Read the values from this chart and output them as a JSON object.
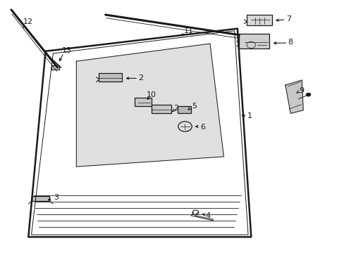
{
  "bg_color": "#ffffff",
  "line_color": "#1a1a1a",
  "label_color": "#1a1a1a",
  "figsize": [
    4.89,
    3.6
  ],
  "dpi": 100
}
